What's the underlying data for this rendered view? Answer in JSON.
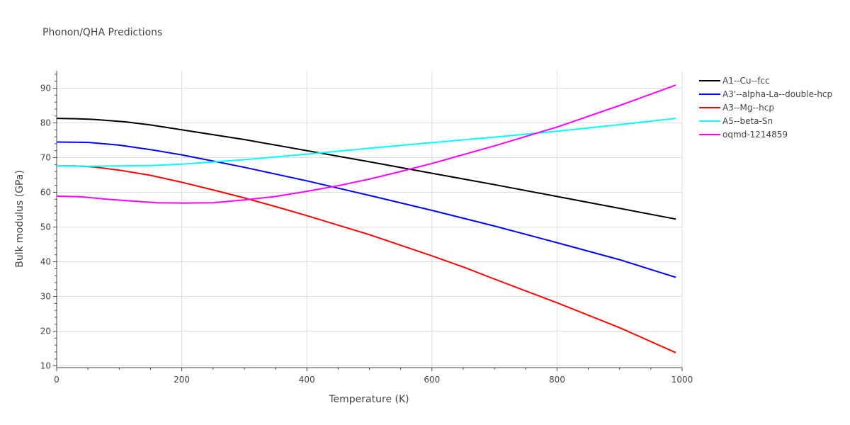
{
  "chart_data": {
    "type": "line",
    "title": "Phonon/QHA Predictions",
    "xlabel": "Temperature (K)",
    "ylabel": "Bulk modulus (GPa)",
    "xlim": [
      0,
      1000
    ],
    "ylim": [
      9.5,
      95
    ],
    "xticks": [
      0,
      200,
      400,
      600,
      800,
      1000
    ],
    "yticks": [
      10,
      20,
      30,
      40,
      50,
      60,
      70,
      80,
      90
    ],
    "grid": true,
    "legend_position": "top-right",
    "series": [
      {
        "name": "A1--Cu--fcc",
        "color": "#000000",
        "x": [
          0,
          30,
          60,
          110,
          150,
          200,
          300,
          400,
          500,
          600,
          700,
          800,
          900,
          990
        ],
        "y": [
          81.3,
          81.2,
          81.0,
          80.3,
          79.4,
          78.0,
          75.2,
          72.0,
          68.8,
          65.5,
          62.2,
          58.8,
          55.4,
          52.3
        ]
      },
      {
        "name": "A3'--alpha-La--double-hcp",
        "color": "#0000ff",
        "x": [
          0,
          50,
          100,
          150,
          200,
          250,
          300,
          400,
          500,
          600,
          700,
          800,
          900,
          990
        ],
        "y": [
          74.5,
          74.4,
          73.6,
          72.3,
          70.8,
          69.0,
          67.2,
          63.3,
          59.1,
          54.8,
          50.3,
          45.5,
          40.6,
          35.5
        ]
      },
      {
        "name": "A3--Mg--hcp",
        "color": "#ff0000",
        "x": [
          0,
          30,
          60,
          100,
          150,
          200,
          250,
          300,
          350,
          400,
          500,
          600,
          650,
          700,
          800,
          900,
          990
        ],
        "y": [
          67.6,
          67.6,
          67.3,
          66.4,
          64.9,
          62.9,
          60.7,
          58.4,
          55.9,
          53.3,
          47.8,
          41.7,
          38.5,
          35.0,
          28.2,
          21.0,
          13.8
        ]
      },
      {
        "name": "A5--beta-Sn",
        "color": "#00ffff",
        "x": [
          0,
          50,
          100,
          150,
          200,
          300,
          400,
          500,
          600,
          700,
          800,
          900,
          990
        ],
        "y": [
          67.6,
          67.5,
          67.6,
          67.7,
          68.1,
          69.4,
          71.0,
          72.7,
          74.3,
          75.9,
          77.6,
          79.5,
          81.3
        ]
      },
      {
        "name": "oqmd-1214859",
        "color": "#ff00ff",
        "x": [
          0,
          40,
          80,
          120,
          160,
          200,
          250,
          300,
          350,
          400,
          450,
          500,
          550,
          600,
          700,
          800,
          900,
          990
        ],
        "y": [
          58.9,
          58.7,
          58.0,
          57.5,
          57.0,
          56.9,
          57.0,
          57.8,
          58.8,
          60.3,
          61.9,
          63.8,
          66.0,
          68.3,
          73.4,
          78.8,
          85.0,
          90.9
        ]
      }
    ]
  }
}
